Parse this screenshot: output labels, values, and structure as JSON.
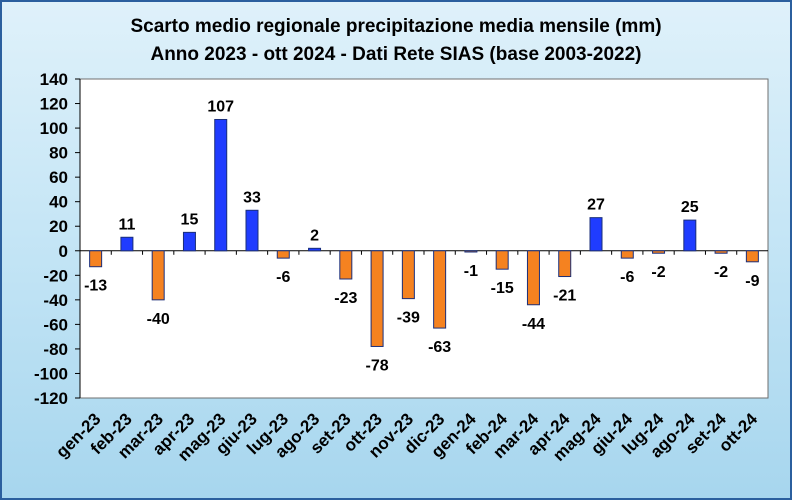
{
  "chart_data": {
    "type": "bar",
    "title": [
      "Scarto medio regionale precipitazione media mensile (mm)",
      "Anno 2023 -  ott 2024 - Dati Rete SIAS (base 2003-2022)"
    ],
    "xlabel": "",
    "ylabel": "",
    "ylim": [
      -120,
      140
    ],
    "ytick_step": 20,
    "grid": false,
    "legend": "none",
    "categories": [
      "gen-23",
      "feb-23",
      "mar-23",
      "apr-23",
      "mag-23",
      "giu-23",
      "lug-23",
      "ago-23",
      "set-23",
      "ott-23",
      "nov-23",
      "dic-23",
      "gen-24",
      "feb-24",
      "mar-24",
      "apr-24",
      "mag-24",
      "giu-24",
      "lug-24",
      "ago-24",
      "set-24",
      "ott-24"
    ],
    "values": [
      -13,
      11,
      -40,
      15,
      107,
      33,
      -6,
      2,
      -23,
      -78,
      -39,
      -63,
      -1,
      -15,
      -44,
      -21,
      27,
      -6,
      -2,
      25,
      -2,
      -9
    ],
    "colors": {
      "positive": "#1f3cff",
      "negative": "#f58220",
      "bar_border": "#1b2f7a",
      "plot_area": "#ffffff",
      "background": "#c6e6f6"
    }
  }
}
